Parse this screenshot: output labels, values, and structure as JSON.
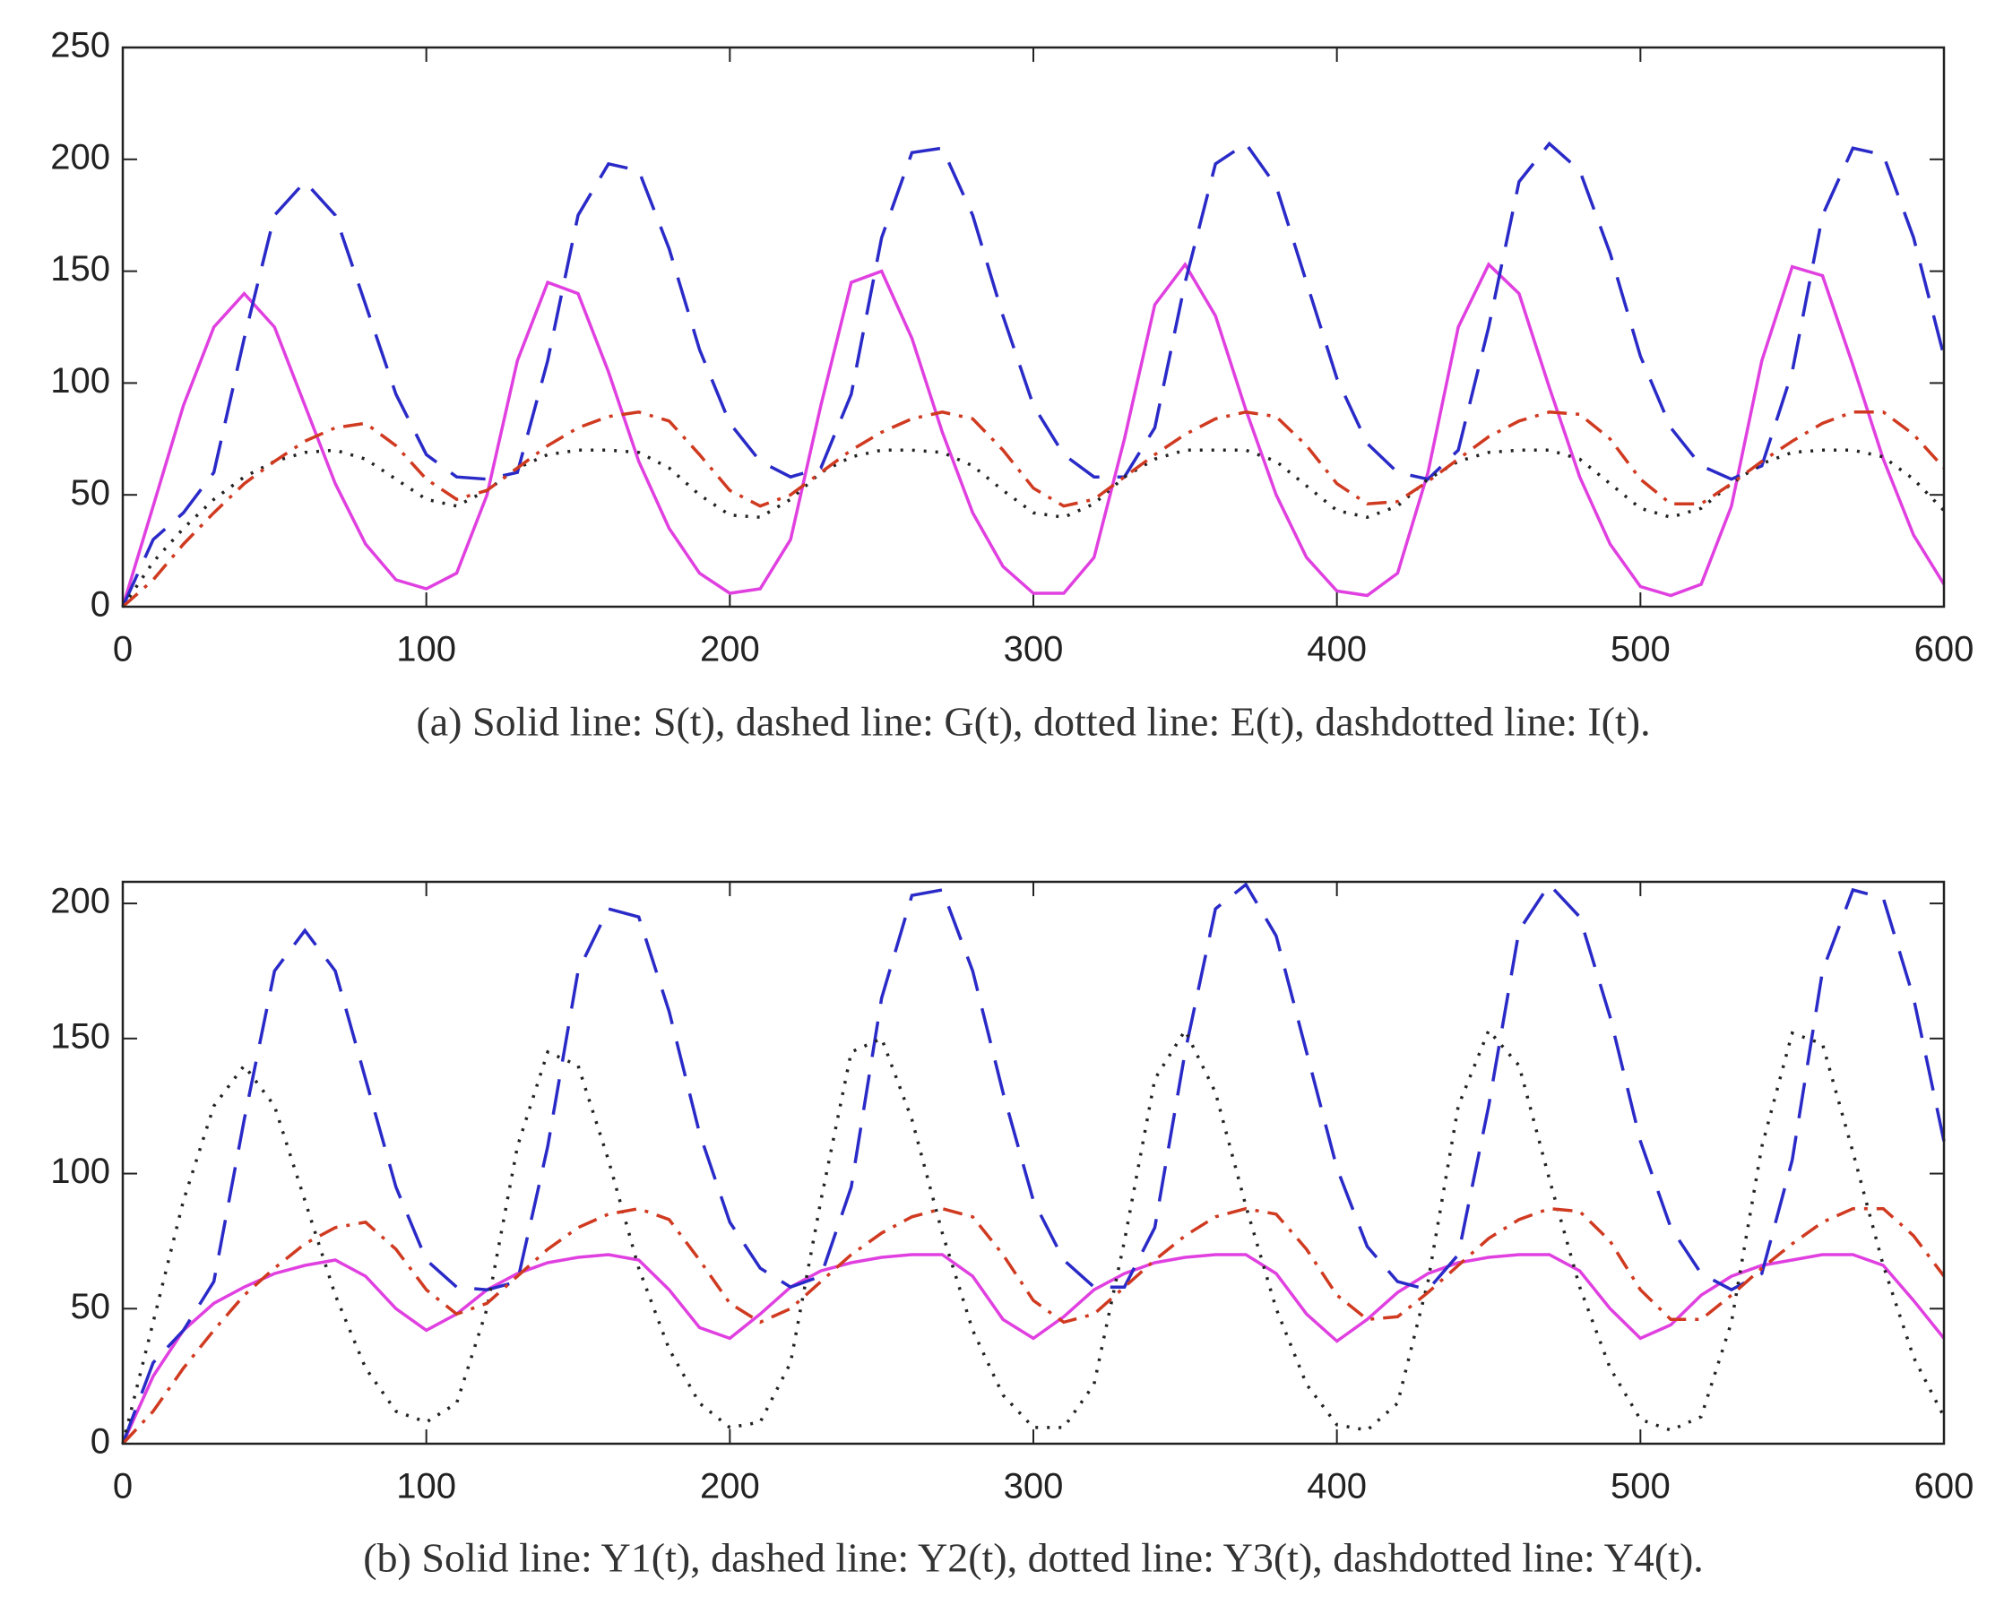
{
  "chart_data": [
    {
      "type": "line",
      "caption": "(a) Solid line: S(t), dashed line: G(t), dotted line: E(t), dashdotted line: I(t).",
      "xlim": [
        0,
        600
      ],
      "ylim": [
        0,
        250
      ],
      "xticks": [
        0,
        100,
        200,
        300,
        400,
        500,
        600
      ],
      "yticks": [
        0,
        50,
        100,
        150,
        200,
        250
      ],
      "x": [
        0,
        10,
        20,
        30,
        40,
        50,
        60,
        70,
        80,
        90,
        100,
        110,
        120,
        130,
        140,
        150,
        160,
        170,
        180,
        190,
        200,
        210,
        220,
        230,
        240,
        250,
        260,
        270,
        280,
        290,
        300,
        310,
        320,
        330,
        340,
        350,
        360,
        370,
        380,
        390,
        400,
        410,
        420,
        430,
        440,
        450,
        460,
        470,
        480,
        490,
        500,
        510,
        520,
        530,
        540,
        550,
        560,
        570,
        580,
        590,
        600
      ],
      "series": [
        {
          "name": "S(t)",
          "color": "#e040e0",
          "style": "solid",
          "values": [
            0,
            45,
            90,
            125,
            140,
            125,
            90,
            55,
            28,
            12,
            8,
            15,
            50,
            110,
            145,
            140,
            105,
            65,
            35,
            15,
            6,
            8,
            30,
            90,
            145,
            150,
            120,
            78,
            42,
            18,
            6,
            6,
            22,
            75,
            135,
            153,
            130,
            88,
            50,
            22,
            7,
            5,
            15,
            60,
            125,
            153,
            140,
            98,
            58,
            28,
            9,
            5,
            10,
            45,
            110,
            152,
            148,
            108,
            66,
            32,
            10
          ]
        },
        {
          "name": "G(t)",
          "color": "#2a2ac8",
          "style": "dashed",
          "values": [
            0,
            30,
            42,
            60,
            120,
            175,
            190,
            175,
            135,
            95,
            68,
            58,
            57,
            60,
            110,
            175,
            198,
            195,
            160,
            115,
            82,
            65,
            58,
            62,
            95,
            165,
            203,
            205,
            175,
            130,
            90,
            68,
            58,
            58,
            80,
            145,
            198,
            207,
            188,
            145,
            102,
            73,
            60,
            57,
            70,
            125,
            190,
            207,
            195,
            158,
            112,
            80,
            63,
            57,
            63,
            105,
            175,
            205,
            202,
            165,
            112
          ]
        },
        {
          "name": "E(t)",
          "color": "#222222",
          "style": "dotted",
          "values": [
            0,
            20,
            35,
            48,
            58,
            65,
            69,
            70,
            66,
            57,
            48,
            45,
            52,
            62,
            68,
            70,
            70,
            69,
            62,
            50,
            41,
            40,
            48,
            60,
            67,
            70,
            70,
            69,
            63,
            52,
            42,
            40,
            46,
            58,
            66,
            70,
            70,
            70,
            65,
            54,
            43,
            40,
            45,
            57,
            65,
            69,
            70,
            70,
            66,
            55,
            44,
            40,
            44,
            55,
            64,
            69,
            70,
            70,
            67,
            57,
            43
          ]
        },
        {
          "name": "I(t)",
          "color": "#d03a20",
          "style": "dashdot",
          "values": [
            0,
            12,
            28,
            42,
            55,
            65,
            74,
            80,
            82,
            72,
            57,
            48,
            52,
            62,
            72,
            80,
            85,
            87,
            83,
            68,
            52,
            45,
            50,
            60,
            70,
            78,
            84,
            87,
            84,
            70,
            53,
            45,
            48,
            58,
            68,
            77,
            84,
            87,
            85,
            72,
            55,
            46,
            47,
            56,
            66,
            76,
            83,
            87,
            86,
            75,
            57,
            46,
            46,
            55,
            65,
            74,
            82,
            87,
            87,
            77,
            62
          ]
        }
      ]
    },
    {
      "type": "line",
      "caption": "(b) Solid line: Y1(t), dashed line: Y2(t), dotted line: Y3(t), dashdotted line: Y4(t).",
      "xlim": [
        0,
        600
      ],
      "ylim": [
        0,
        208
      ],
      "xticks": [
        0,
        100,
        200,
        300,
        400,
        500,
        600
      ],
      "yticks": [
        0,
        50,
        100,
        150,
        200
      ],
      "x": [
        0,
        10,
        20,
        30,
        40,
        50,
        60,
        70,
        80,
        90,
        100,
        110,
        120,
        130,
        140,
        150,
        160,
        170,
        180,
        190,
        200,
        210,
        220,
        230,
        240,
        250,
        260,
        270,
        280,
        290,
        300,
        310,
        320,
        330,
        340,
        350,
        360,
        370,
        380,
        390,
        400,
        410,
        420,
        430,
        440,
        450,
        460,
        470,
        480,
        490,
        500,
        510,
        520,
        530,
        540,
        550,
        560,
        570,
        580,
        590,
        600
      ],
      "series": [
        {
          "name": "Y1(t)",
          "color": "#e040e0",
          "style": "solid",
          "values": [
            0,
            25,
            42,
            52,
            58,
            63,
            66,
            68,
            62,
            50,
            42,
            48,
            57,
            63,
            67,
            69,
            70,
            68,
            57,
            43,
            39,
            48,
            58,
            64,
            67,
            69,
            70,
            70,
            62,
            46,
            39,
            47,
            57,
            63,
            67,
            69,
            70,
            70,
            63,
            48,
            38,
            46,
            56,
            63,
            67,
            69,
            70,
            70,
            64,
            50,
            39,
            44,
            55,
            62,
            66,
            68,
            70,
            70,
            66,
            53,
            39
          ]
        },
        {
          "name": "Y2(t)",
          "color": "#2a2ac8",
          "style": "dashed",
          "values": [
            0,
            30,
            42,
            60,
            120,
            175,
            190,
            175,
            135,
            95,
            68,
            58,
            57,
            60,
            110,
            175,
            198,
            195,
            160,
            115,
            82,
            65,
            58,
            62,
            95,
            165,
            203,
            205,
            175,
            130,
            90,
            68,
            58,
            58,
            80,
            145,
            198,
            207,
            188,
            145,
            102,
            73,
            60,
            57,
            70,
            125,
            190,
            207,
            195,
            158,
            112,
            80,
            63,
            57,
            63,
            105,
            175,
            205,
            202,
            165,
            112
          ]
        },
        {
          "name": "Y3(t)",
          "color": "#222222",
          "style": "dotted",
          "values": [
            0,
            45,
            90,
            125,
            140,
            125,
            90,
            55,
            28,
            12,
            8,
            15,
            50,
            110,
            145,
            140,
            105,
            65,
            35,
            15,
            6,
            8,
            30,
            90,
            145,
            150,
            120,
            78,
            42,
            18,
            6,
            6,
            22,
            75,
            135,
            153,
            130,
            88,
            50,
            22,
            7,
            5,
            15,
            60,
            125,
            153,
            140,
            98,
            58,
            28,
            9,
            5,
            10,
            45,
            110,
            152,
            148,
            108,
            66,
            32,
            10
          ]
        },
        {
          "name": "Y4(t)",
          "color": "#d03a20",
          "style": "dashdot",
          "values": [
            0,
            12,
            28,
            42,
            55,
            65,
            74,
            80,
            82,
            72,
            57,
            48,
            52,
            62,
            72,
            80,
            85,
            87,
            83,
            68,
            52,
            45,
            50,
            60,
            70,
            78,
            84,
            87,
            84,
            70,
            53,
            45,
            48,
            58,
            68,
            77,
            84,
            87,
            85,
            72,
            55,
            46,
            47,
            56,
            66,
            76,
            83,
            87,
            86,
            75,
            57,
            46,
            46,
            55,
            65,
            74,
            82,
            87,
            87,
            77,
            62
          ]
        }
      ]
    }
  ]
}
